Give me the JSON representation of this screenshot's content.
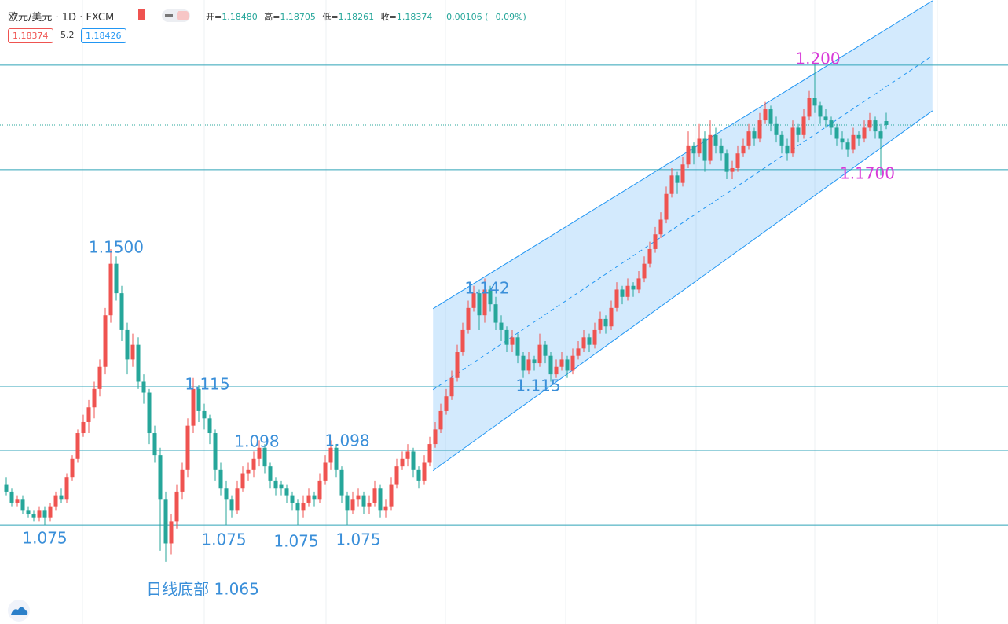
{
  "header": {
    "symbol": "欧元/美元 · 1D · FXCM",
    "open_label": "开=",
    "open": "1.18480",
    "high_label": "高=",
    "high": "1.18705",
    "low_label": "低=",
    "low": "1.18261",
    "close_label": "收=",
    "close": "1.18374",
    "change": "−0.00106 (−0.09%)",
    "bid": "1.18374",
    "spread": "5.2",
    "ask": "1.18426"
  },
  "chart_data": {
    "type": "candlestick",
    "up_color": "#ef5350",
    "down_color": "#26a69a",
    "level_color": "#2fa3b8",
    "channel_color": "#2196f3",
    "ylim": [
      1.0481,
      1.2177
    ],
    "levels": [
      1.2,
      1.1716,
      1.1126,
      1.0953,
      1.075
    ],
    "channel": {
      "x": [
        77.6,
        168.4
      ],
      "upper": [
        1.1338,
        1.2175
      ],
      "lower": [
        1.0898,
        1.1876
      ]
    },
    "annotations": [
      {
        "text": "1.1500",
        "color": "#3a8fd9"
      },
      {
        "text": "1.075",
        "color": "#3a8fd9"
      },
      {
        "text": "日线底部 1.065",
        "color": "#3a8fd9"
      },
      {
        "text": "1.115",
        "color": "#3a8fd9"
      },
      {
        "text": "1.098",
        "color": "#3a8fd9"
      },
      {
        "text": "1.075",
        "color": "#3a8fd9"
      },
      {
        "text": "1.075",
        "color": "#3a8fd9"
      },
      {
        "text": "1.098",
        "color": "#3a8fd9"
      },
      {
        "text": "1.075",
        "color": "#3a8fd9"
      },
      {
        "text": "1.142",
        "color": "#3a8fd9"
      },
      {
        "text": "1.115",
        "color": "#3a8fd9"
      },
      {
        "text": "1.200",
        "color": "#d83ad8"
      },
      {
        "text": "1.1700",
        "color": "#d83ad8"
      }
    ],
    "candles": [
      [
        1.086,
        1.088,
        1.083,
        1.084
      ],
      [
        1.084,
        1.085,
        1.08,
        1.081
      ],
      [
        1.081,
        1.083,
        1.08,
        1.082
      ],
      [
        1.082,
        1.083,
        1.078,
        1.079
      ],
      [
        1.079,
        1.08,
        1.077,
        1.078
      ],
      [
        1.078,
        1.079,
        1.076,
        1.077
      ],
      [
        1.077,
        1.08,
        1.076,
        1.079
      ],
      [
        1.079,
        1.08,
        1.075,
        1.077
      ],
      [
        1.077,
        1.081,
        1.076,
        1.08
      ],
      [
        1.08,
        1.084,
        1.079,
        1.083
      ],
      [
        1.083,
        1.085,
        1.081,
        1.082
      ],
      [
        1.082,
        1.089,
        1.081,
        1.088
      ],
      [
        1.088,
        1.094,
        1.087,
        1.093
      ],
      [
        1.093,
        1.101,
        1.092,
        1.1
      ],
      [
        1.1,
        1.105,
        1.099,
        1.103
      ],
      [
        1.103,
        1.109,
        1.1,
        1.107
      ],
      [
        1.107,
        1.114,
        1.104,
        1.112
      ],
      [
        1.112,
        1.12,
        1.11,
        1.118
      ],
      [
        1.118,
        1.134,
        1.116,
        1.132
      ],
      [
        1.132,
        1.15,
        1.13,
        1.146
      ],
      [
        1.146,
        1.148,
        1.136,
        1.138
      ],
      [
        1.138,
        1.14,
        1.125,
        1.128
      ],
      [
        1.128,
        1.13,
        1.116,
        1.12
      ],
      [
        1.12,
        1.127,
        1.118,
        1.124
      ],
      [
        1.124,
        1.126,
        1.112,
        1.114
      ],
      [
        1.114,
        1.116,
        1.108,
        1.111
      ],
      [
        1.111,
        1.112,
        1.097,
        1.1
      ],
      [
        1.1,
        1.102,
        1.092,
        1.094
      ],
      [
        1.094,
        1.096,
        1.068,
        1.082
      ],
      [
        1.082,
        1.084,
        1.065,
        1.07
      ],
      [
        1.07,
        1.078,
        1.067,
        1.076
      ],
      [
        1.076,
        1.086,
        1.074,
        1.084
      ],
      [
        1.084,
        1.092,
        1.082,
        1.09
      ],
      [
        1.09,
        1.104,
        1.088,
        1.102
      ],
      [
        1.102,
        1.115,
        1.1,
        1.112
      ],
      [
        1.112,
        1.113,
        1.103,
        1.106
      ],
      [
        1.106,
        1.108,
        1.101,
        1.104
      ],
      [
        1.104,
        1.105,
        1.097,
        1.1
      ],
      [
        1.1,
        1.101,
        1.087,
        1.09
      ],
      [
        1.09,
        1.092,
        1.083,
        1.085
      ],
      [
        1.085,
        1.087,
        1.075,
        1.082
      ],
      [
        1.082,
        1.083,
        1.077,
        1.079
      ],
      [
        1.079,
        1.087,
        1.078,
        1.085
      ],
      [
        1.085,
        1.091,
        1.084,
        1.089
      ],
      [
        1.089,
        1.092,
        1.087,
        1.09
      ],
      [
        1.09,
        1.095,
        1.088,
        1.093
      ],
      [
        1.093,
        1.098,
        1.091,
        1.096
      ],
      [
        1.096,
        1.097,
        1.089,
        1.091
      ],
      [
        1.091,
        1.092,
        1.085,
        1.087
      ],
      [
        1.087,
        1.088,
        1.083,
        1.085
      ],
      [
        1.086,
        1.087,
        1.083,
        1.085
      ],
      [
        1.085,
        1.086,
        1.081,
        1.083
      ],
      [
        1.083,
        1.084,
        1.079,
        1.081
      ],
      [
        1.081,
        1.082,
        1.075,
        1.079
      ],
      [
        1.079,
        1.083,
        1.077,
        1.081
      ],
      [
        1.081,
        1.085,
        1.08,
        1.083
      ],
      [
        1.083,
        1.084,
        1.08,
        1.082
      ],
      [
        1.082,
        1.089,
        1.081,
        1.087
      ],
      [
        1.087,
        1.094,
        1.086,
        1.092
      ],
      [
        1.092,
        1.098,
        1.09,
        1.096
      ],
      [
        1.096,
        1.097,
        1.088,
        1.09
      ],
      [
        1.09,
        1.091,
        1.081,
        1.083
      ],
      [
        1.083,
        1.084,
        1.075,
        1.079
      ],
      [
        1.079,
        1.084,
        1.078,
        1.082
      ],
      [
        1.082,
        1.085,
        1.08,
        1.083
      ],
      [
        1.083,
        1.084,
        1.078,
        1.08
      ],
      [
        1.08,
        1.083,
        1.078,
        1.081
      ],
      [
        1.081,
        1.087,
        1.08,
        1.085
      ],
      [
        1.085,
        1.086,
        1.077,
        1.079
      ],
      [
        1.079,
        1.082,
        1.077,
        1.08
      ],
      [
        1.08,
        1.088,
        1.079,
        1.086
      ],
      [
        1.086,
        1.093,
        1.085,
        1.091
      ],
      [
        1.091,
        1.095,
        1.09,
        1.093
      ],
      [
        1.093,
        1.097,
        1.091,
        1.095
      ],
      [
        1.095,
        1.096,
        1.088,
        1.09
      ],
      [
        1.09,
        1.091,
        1.085,
        1.087
      ],
      [
        1.087,
        1.094,
        1.086,
        1.092
      ],
      [
        1.092,
        1.099,
        1.091,
        1.097
      ],
      [
        1.097,
        1.103,
        1.096,
        1.101
      ],
      [
        1.101,
        1.108,
        1.1,
        1.106
      ],
      [
        1.106,
        1.112,
        1.105,
        1.11
      ],
      [
        1.11,
        1.117,
        1.109,
        1.115
      ],
      [
        1.115,
        1.124,
        1.114,
        1.122
      ],
      [
        1.122,
        1.13,
        1.121,
        1.128
      ],
      [
        1.128,
        1.136,
        1.127,
        1.134
      ],
      [
        1.134,
        1.14,
        1.133,
        1.138
      ],
      [
        1.138,
        1.139,
        1.128,
        1.132
      ],
      [
        1.132,
        1.142,
        1.13,
        1.139
      ],
      [
        1.139,
        1.14,
        1.133,
        1.135
      ],
      [
        1.135,
        1.137,
        1.128,
        1.13
      ],
      [
        1.13,
        1.132,
        1.125,
        1.128
      ],
      [
        1.128,
        1.129,
        1.122,
        1.124
      ],
      [
        1.124,
        1.128,
        1.122,
        1.126
      ],
      [
        1.126,
        1.127,
        1.119,
        1.121
      ],
      [
        1.121,
        1.122,
        1.115,
        1.117
      ],
      [
        1.117,
        1.122,
        1.116,
        1.12
      ],
      [
        1.12,
        1.121,
        1.117,
        1.119
      ],
      [
        1.119,
        1.127,
        1.118,
        1.124
      ],
      [
        1.124,
        1.125,
        1.119,
        1.121
      ],
      [
        1.121,
        1.122,
        1.114,
        1.116
      ],
      [
        1.116,
        1.12,
        1.115,
        1.118
      ],
      [
        1.118,
        1.122,
        1.117,
        1.12
      ],
      [
        1.12,
        1.121,
        1.115,
        1.117
      ],
      [
        1.117,
        1.123,
        1.116,
        1.121
      ],
      [
        1.121,
        1.125,
        1.12,
        1.123
      ],
      [
        1.123,
        1.128,
        1.122,
        1.126
      ],
      [
        1.126,
        1.127,
        1.122,
        1.124
      ],
      [
        1.124,
        1.13,
        1.123,
        1.128
      ],
      [
        1.128,
        1.133,
        1.127,
        1.131
      ],
      [
        1.131,
        1.132,
        1.127,
        1.129
      ],
      [
        1.129,
        1.136,
        1.128,
        1.134
      ],
      [
        1.134,
        1.141,
        1.133,
        1.139
      ],
      [
        1.139,
        1.14,
        1.135,
        1.137
      ],
      [
        1.137,
        1.142,
        1.136,
        1.14
      ],
      [
        1.14,
        1.141,
        1.137,
        1.139
      ],
      [
        1.139,
        1.144,
        1.138,
        1.142
      ],
      [
        1.142,
        1.148,
        1.141,
        1.146
      ],
      [
        1.146,
        1.152,
        1.145,
        1.15
      ],
      [
        1.15,
        1.156,
        1.149,
        1.154
      ],
      [
        1.154,
        1.16,
        1.153,
        1.158
      ],
      [
        1.158,
        1.167,
        1.157,
        1.165
      ],
      [
        1.165,
        1.172,
        1.164,
        1.17
      ],
      [
        1.17,
        1.171,
        1.165,
        1.168
      ],
      [
        1.168,
        1.175,
        1.167,
        1.173
      ],
      [
        1.173,
        1.182,
        1.172,
        1.178
      ],
      [
        1.178,
        1.179,
        1.173,
        1.176
      ],
      [
        1.176,
        1.184,
        1.175,
        1.18
      ],
      [
        1.18,
        1.182,
        1.171,
        1.174
      ],
      [
        1.174,
        1.185,
        1.173,
        1.181
      ],
      [
        1.181,
        1.183,
        1.176,
        1.178
      ],
      [
        1.178,
        1.18,
        1.174,
        1.176
      ],
      [
        1.176,
        1.177,
        1.169,
        1.171
      ],
      [
        1.171,
        1.174,
        1.169,
        1.172
      ],
      [
        1.172,
        1.178,
        1.171,
        1.176
      ],
      [
        1.176,
        1.18,
        1.175,
        1.178
      ],
      [
        1.178,
        1.184,
        1.177,
        1.182
      ],
      [
        1.182,
        1.183,
        1.178,
        1.18
      ],
      [
        1.18,
        1.187,
        1.179,
        1.185
      ],
      [
        1.185,
        1.19,
        1.184,
        1.188
      ],
      [
        1.188,
        1.189,
        1.182,
        1.184
      ],
      [
        1.184,
        1.186,
        1.179,
        1.181
      ],
      [
        1.181,
        1.182,
        1.176,
        1.178
      ],
      [
        1.178,
        1.18,
        1.174,
        1.176
      ],
      [
        1.176,
        1.185,
        1.175,
        1.183
      ],
      [
        1.183,
        1.184,
        1.179,
        1.181
      ],
      [
        1.181,
        1.188,
        1.18,
        1.186
      ],
      [
        1.186,
        1.193,
        1.185,
        1.191
      ],
      [
        1.191,
        1.2005,
        1.187,
        1.189
      ],
      [
        1.189,
        1.19,
        1.184,
        1.186
      ],
      [
        1.186,
        1.188,
        1.183,
        1.185
      ],
      [
        1.185,
        1.186,
        1.181,
        1.183
      ],
      [
        1.183,
        1.184,
        1.178,
        1.18
      ],
      [
        1.18,
        1.182,
        1.177,
        1.179
      ],
      [
        1.179,
        1.18,
        1.175,
        1.177
      ],
      [
        1.177,
        1.183,
        1.176,
        1.181
      ],
      [
        1.181,
        1.182,
        1.178,
        1.18
      ],
      [
        1.18,
        1.185,
        1.179,
        1.183
      ],
      [
        1.183,
        1.187,
        1.182,
        1.185
      ],
      [
        1.185,
        1.186,
        1.18,
        1.182
      ],
      [
        1.182,
        1.184,
        1.17,
        1.18
      ],
      [
        1.1848,
        1.18705,
        1.18261,
        1.18374
      ]
    ]
  }
}
